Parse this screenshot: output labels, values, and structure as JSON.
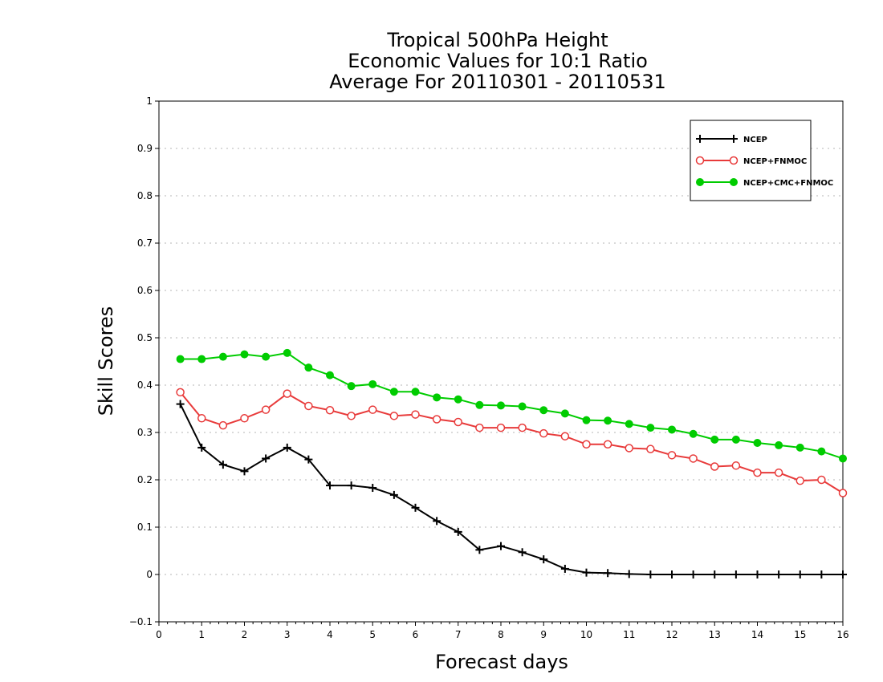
{
  "chart_data": {
    "type": "line",
    "title": [
      "Tropical 500hPa Height",
      "Economic Values for 10:1 Ratio",
      "Average For 20110301 - 20110531"
    ],
    "xlabel": "Forecast days",
    "ylabel": "Skill Scores",
    "xlim": [
      0,
      16
    ],
    "ylim": [
      -0.1,
      1
    ],
    "xticks": [
      "0",
      "1",
      "2",
      "3",
      "4",
      "5",
      "6",
      "7",
      "8",
      "9",
      "10",
      "11",
      "12",
      "13",
      "14",
      "15",
      "16"
    ],
    "yticks": [
      "−0.1",
      "0",
      "0.1",
      "0.2",
      "0.3",
      "0.4",
      "0.5",
      "0.6",
      "0.7",
      "0.8",
      "0.9",
      "1"
    ],
    "grid": true,
    "legend_position": "top-right",
    "x": [
      0.5,
      1,
      1.5,
      2,
      2.5,
      3,
      3.5,
      4,
      4.5,
      5,
      5.5,
      6,
      6.5,
      7,
      7.5,
      8,
      8.5,
      9,
      9.5,
      10,
      10.5,
      11,
      11.5,
      12,
      12.5,
      13,
      13.5,
      14,
      14.5,
      15,
      15.5,
      16
    ],
    "series": [
      {
        "name": "NCEP",
        "color": "#000000",
        "marker": "plus",
        "values": [
          0.36,
          0.268,
          0.232,
          0.218,
          0.245,
          0.268,
          0.243,
          0.188,
          0.188,
          0.183,
          0.168,
          0.141,
          0.113,
          0.09,
          0.052,
          0.06,
          0.047,
          0.032,
          0.012,
          0.004,
          0.003,
          0.001,
          0.0,
          0.0,
          0.0,
          0.0,
          0.0,
          0.0,
          0.0,
          0.0,
          0.0,
          0.0
        ]
      },
      {
        "name": "NCEP+FNMOC",
        "color": "#e83a3a",
        "marker": "open-circle",
        "values": [
          0.385,
          0.33,
          0.315,
          0.33,
          0.348,
          0.382,
          0.356,
          0.347,
          0.335,
          0.348,
          0.335,
          0.338,
          0.328,
          0.322,
          0.31,
          0.31,
          0.31,
          0.298,
          0.292,
          0.275,
          0.275,
          0.267,
          0.265,
          0.252,
          0.245,
          0.228,
          0.23,
          0.215,
          0.215,
          0.198,
          0.2,
          0.172
        ]
      },
      {
        "name": "NCEP+CMC+FNMOC",
        "color": "#00cc00",
        "marker": "filled-circle",
        "values": [
          0.455,
          0.455,
          0.46,
          0.465,
          0.46,
          0.468,
          0.437,
          0.421,
          0.398,
          0.402,
          0.386,
          0.386,
          0.374,
          0.37,
          0.358,
          0.357,
          0.355,
          0.347,
          0.34,
          0.326,
          0.325,
          0.318,
          0.31,
          0.306,
          0.297,
          0.285,
          0.285,
          0.278,
          0.273,
          0.268,
          0.26,
          0.245
        ]
      }
    ]
  }
}
